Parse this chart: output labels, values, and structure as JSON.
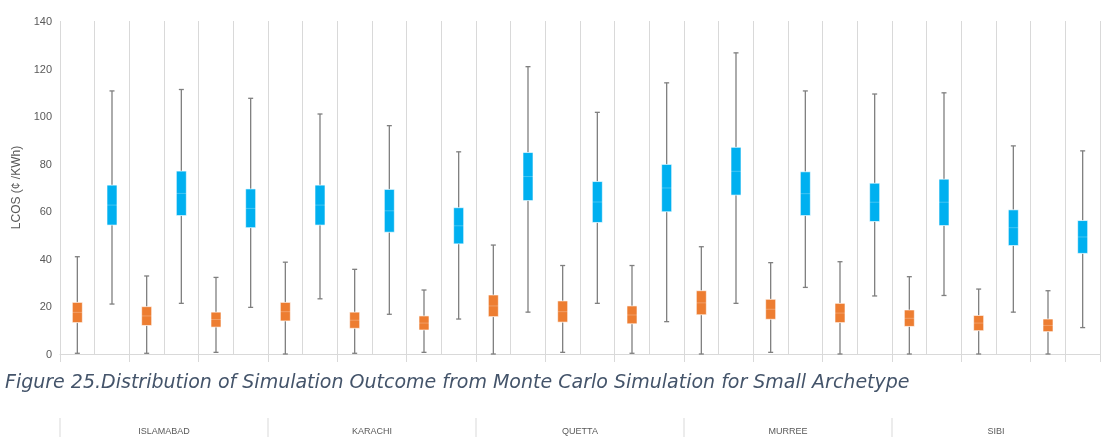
{
  "chart_data": {
    "type": "box",
    "title": "Figure 25.Distribution of Simulation Outcome from Monte Carlo Simulation for Small Archetype",
    "ylabel": "LCOS (¢ /KWh)",
    "categories": [
      null,
      null,
      null,
      null,
      null,
      null,
      null,
      null,
      null,
      null,
      null,
      null,
      null,
      null,
      null,
      null,
      null,
      null,
      null,
      null,
      null,
      null,
      null,
      null,
      null,
      null,
      null,
      null,
      null,
      null
    ],
    "ylim": [
      0,
      140
    ],
    "yticks": [
      0,
      20,
      40,
      60,
      80,
      100,
      120,
      140
    ],
    "grid": "x",
    "tick_labels": "y",
    "annotations": [
      "ISLAMABAD",
      "KARACHI",
      "QUETTA",
      "MURREE",
      "SIBI"
    ],
    "series": [
      {
        "color": "#ed7d31",
        "boxes": [
          {
            "low": 0.3,
            "q1": 13.2,
            "median": 17.5,
            "q3": 21.7,
            "high": 40.9
          },
          null,
          {
            "low": 0.3,
            "q1": 12,
            "median": 16,
            "q3": 19.9,
            "high": 32.8
          },
          null,
          {
            "low": 0.7,
            "q1": 11.3,
            "median": 14.5,
            "q3": 17.6,
            "high": 32.2
          },
          null,
          {
            "low": 0,
            "q1": 13.9,
            "median": 17.8,
            "q3": 21.7,
            "high": 38.6
          },
          null,
          {
            "low": 0.3,
            "q1": 10.8,
            "median": 14.2,
            "q3": 17.6,
            "high": 35.6
          },
          null,
          {
            "low": 0.7,
            "q1": 10.1,
            "median": 13,
            "q3": 16,
            "high": 26.9
          },
          null,
          {
            "low": 0,
            "q1": 15.7,
            "median": 20.2,
            "q3": 24.8,
            "high": 45.8
          },
          null,
          {
            "low": 0.7,
            "q1": 13.4,
            "median": 17.8,
            "q3": 22.3,
            "high": 37.2
          },
          null,
          {
            "low": 0.3,
            "q1": 12.7,
            "median": 16.4,
            "q3": 20.2,
            "high": 37.2
          },
          null,
          {
            "low": 0,
            "q1": 16.5,
            "median": 21.5,
            "q3": 26.6,
            "high": 45.1
          },
          null,
          {
            "low": 0.7,
            "q1": 14.6,
            "median": 18.8,
            "q3": 23,
            "high": 38.4
          },
          null,
          {
            "low": 0,
            "q1": 13.2,
            "median": 17.2,
            "q3": 21.3,
            "high": 38.8
          },
          null,
          {
            "low": 0,
            "q1": 11.6,
            "median": 15,
            "q3": 18.5,
            "high": 32.5
          },
          null,
          {
            "low": 0,
            "q1": 9.8,
            "median": 13,
            "q3": 16.2,
            "high": 27.3
          },
          null,
          {
            "low": 0,
            "q1": 9.4,
            "median": 12,
            "q3": 14.7,
            "high": 26.6
          },
          null
        ]
      },
      {
        "color": "#00b0f0",
        "boxes": [
          null,
          {
            "low": 21,
            "q1": 54.2,
            "median": 62.6,
            "q3": 71,
            "high": 110.6
          },
          null,
          {
            "low": 21.3,
            "q1": 58.2,
            "median": 67.5,
            "q3": 76.9,
            "high": 111.2
          },
          null,
          {
            "low": 19.6,
            "q1": 53.1,
            "median": 61.2,
            "q3": 69.4,
            "high": 107.5
          },
          null,
          {
            "low": 23.2,
            "q1": 54.2,
            "median": 62.6,
            "q3": 71,
            "high": 100.9
          },
          null,
          {
            "low": 16.7,
            "q1": 51.2,
            "median": 60.2,
            "q3": 69.2,
            "high": 96
          },
          null,
          {
            "low": 14.7,
            "q1": 46.3,
            "median": 53.9,
            "q3": 61.5,
            "high": 85
          },
          null,
          {
            "low": 17.6,
            "q1": 64.5,
            "median": 74.6,
            "q3": 84.7,
            "high": 120.8
          },
          null,
          {
            "low": 21.3,
            "q1": 55.3,
            "median": 63.9,
            "q3": 72.5,
            "high": 101.6
          },
          null,
          {
            "low": 13.6,
            "q1": 59.8,
            "median": 69.8,
            "q3": 79.7,
            "high": 114
          },
          null,
          {
            "low": 21.3,
            "q1": 66.8,
            "median": 76.8,
            "q3": 86.9,
            "high": 126.6
          },
          null,
          {
            "low": 28,
            "q1": 58.2,
            "median": 67.4,
            "q3": 76.6,
            "high": 110.6
          },
          null,
          {
            "low": 24.4,
            "q1": 55.7,
            "median": 63.8,
            "q3": 71.8,
            "high": 109.3
          },
          null,
          {
            "low": 24.6,
            "q1": 54,
            "median": 63.8,
            "q3": 73.5,
            "high": 109.8
          },
          null,
          {
            "low": 17.6,
            "q1": 45.6,
            "median": 53.1,
            "q3": 60.6,
            "high": 87.5
          },
          null,
          {
            "low": 11.1,
            "q1": 42.3,
            "median": 49.2,
            "q3": 56.1,
            "high": 85.4
          }
        ]
      }
    ]
  }
}
